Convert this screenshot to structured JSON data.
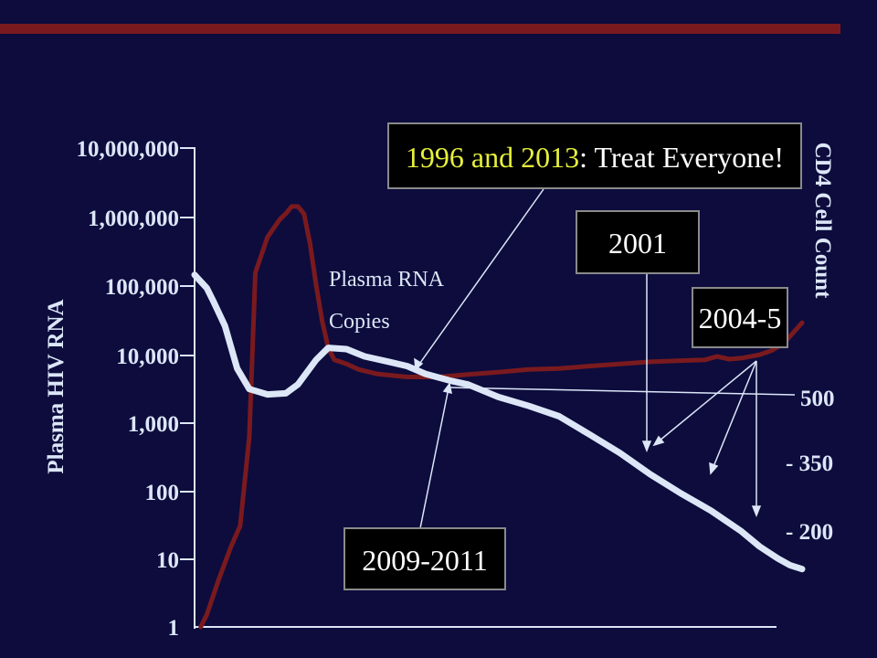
{
  "chart_data": {
    "type": "line",
    "left_axis": {
      "label": "Plasma HIV RNA",
      "scale": "log",
      "range": [
        1,
        10000000
      ],
      "ticks": [
        "10,000,000",
        "1,000,000",
        "100,000",
        "10,000",
        "1,000",
        "100",
        "10",
        "1"
      ]
    },
    "right_axis": {
      "label": "CD4 Cell Count",
      "ticks": [
        "500",
        "- 350",
        "- 200"
      ]
    },
    "series": [
      {
        "name": "Plasma RNA Copies",
        "color": "#7a1a1e",
        "x": [
          0.01,
          0.02,
          0.04,
          0.06,
          0.075,
          0.09,
          0.1,
          0.12,
          0.14,
          0.15,
          0.16,
          0.17,
          0.18,
          0.19,
          0.2,
          0.21,
          0.22,
          0.23,
          0.24,
          0.25,
          0.27,
          0.3,
          0.35,
          0.4,
          0.45,
          0.5,
          0.55,
          0.6,
          0.65,
          0.7,
          0.75,
          0.8,
          0.84,
          0.86,
          0.88,
          0.9,
          0.93,
          0.95,
          0.97,
          1.0
        ],
        "values": [
          1,
          1.5,
          5,
          15,
          30,
          600,
          150000,
          500000,
          900000,
          1100000,
          1400000,
          1400000,
          1100000,
          400000,
          100000,
          30000,
          12000,
          8000,
          7500,
          7000,
          5800,
          5000,
          4500,
          4500,
          4900,
          5300,
          5800,
          6000,
          6500,
          7000,
          7500,
          7800,
          8000,
          9000,
          8200,
          8500,
          9500,
          11000,
          14000,
          28000
        ]
      },
      {
        "name": "CD4 Cell Count",
        "color": "#dce6f7",
        "x": [
          0.0,
          0.02,
          0.03,
          0.05,
          0.07,
          0.09,
          0.12,
          0.15,
          0.17,
          0.2,
          0.22,
          0.25,
          0.28,
          0.32,
          0.35,
          0.38,
          0.42,
          0.45,
          0.5,
          0.55,
          0.6,
          0.65,
          0.7,
          0.75,
          0.8,
          0.85,
          0.9,
          0.93,
          0.96,
          0.98,
          1.0
        ],
        "values": [
          140000,
          90000,
          60000,
          25000,
          6000,
          3000,
          2500,
          2600,
          3500,
          8000,
          12000,
          11500,
          9000,
          7500,
          6500,
          5000,
          4000,
          3500,
          2300,
          1700,
          1200,
          650,
          350,
          170,
          90,
          50,
          25,
          15,
          10,
          8,
          7
        ]
      }
    ],
    "annotations": {
      "series_label_line1": "Plasma RNA",
      "series_label_line2": "Copies",
      "box_main_highlight": "1996 and 2013",
      "box_main_rest": ": Treat Everyone!",
      "box_2001": "2001",
      "box_2004": "2004-5",
      "box_2009": "2009-2011"
    },
    "colors": {
      "background": "#0d0c3d",
      "accent_bar": "#7a1a1e",
      "highlight_text": "#e6f03a",
      "box_fill": "#000000",
      "box_border": "#8a8a8a"
    }
  }
}
